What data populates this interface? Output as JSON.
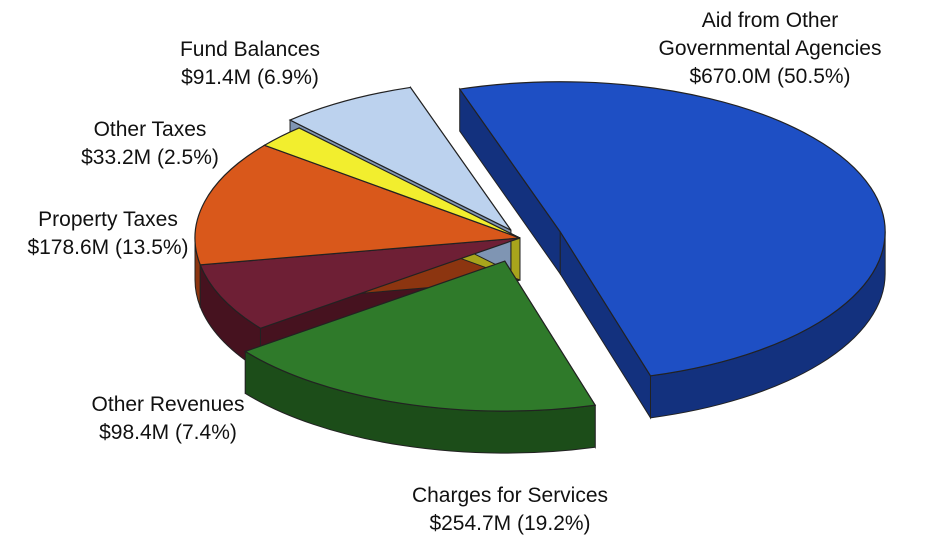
{
  "chart_data": {
    "type": "pie",
    "title": "",
    "slices": [
      {
        "label_lines": [
          "Aid from Other",
          "Governmental Agencies",
          "$670.0M (50.5%)"
        ],
        "value": 670.0,
        "percent": 50.5,
        "color": "#1e4fc4",
        "side": "#13317e",
        "exploded": true
      },
      {
        "label_lines": [
          "Charges for Services",
          "$254.7M (19.2%)"
        ],
        "value": 254.7,
        "percent": 19.2,
        "color": "#2f7a2a",
        "side": "#1c4d19",
        "exploded": true
      },
      {
        "label_lines": [
          "Other Revenues",
          "$98.4M (7.4%)"
        ],
        "value": 98.4,
        "percent": 7.4,
        "color": "#6e1f35",
        "side": "#46121f",
        "exploded": false
      },
      {
        "label_lines": [
          "Property Taxes",
          "$178.6M (13.5%)"
        ],
        "value": 178.6,
        "percent": 13.5,
        "color": "#d9581b",
        "side": "#8c3510",
        "exploded": false
      },
      {
        "label_lines": [
          "Other Taxes",
          "$33.2M (2.5%)"
        ],
        "value": 33.2,
        "percent": 2.5,
        "color": "#f2ee2e",
        "side": "#a8a41c",
        "exploded": false
      },
      {
        "label_lines": [
          "Fund Balances",
          "$91.4M (6.9%)"
        ],
        "value": 91.4,
        "percent": 6.9,
        "color": "#bcd2ee",
        "side": "#7f95b3",
        "exploded": true
      }
    ]
  }
}
